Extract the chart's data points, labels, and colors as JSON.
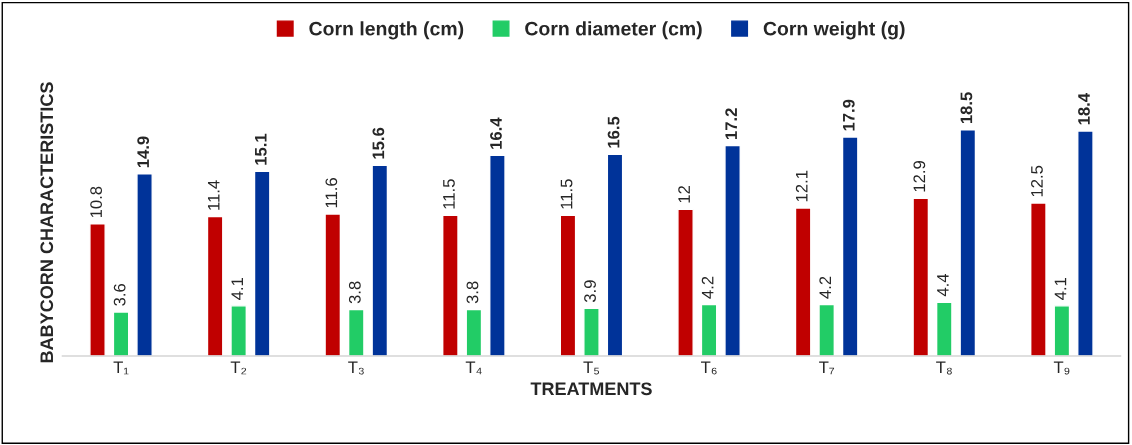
{
  "chart_data": {
    "type": "bar",
    "xlabel": "TREATMENTS",
    "ylabel": "BABYCORN CHARACTERISTICS",
    "categories": [
      "T₁",
      "T₂",
      "T₃",
      "T₄",
      "T₅",
      "T₆",
      "T₇",
      "T₈",
      "T₉"
    ],
    "series": [
      {
        "name": "Corn length (cm)",
        "color": "#c00000",
        "values": [
          10.8,
          11.4,
          11.6,
          11.5,
          11.5,
          12,
          12.1,
          12.9,
          12.5
        ]
      },
      {
        "name": "Corn diameter (cm)",
        "color": "#22cc66",
        "values": [
          3.6,
          4.1,
          3.8,
          3.8,
          3.9,
          4.2,
          4.2,
          4.4,
          4.1
        ]
      },
      {
        "name": "Corn weight (g)",
        "color": "#003399",
        "values": [
          14.9,
          15.1,
          15.6,
          16.4,
          16.5,
          17.2,
          17.9,
          18.5,
          18.4
        ]
      }
    ],
    "data_labels": true,
    "legend": "top",
    "grid": false
  }
}
